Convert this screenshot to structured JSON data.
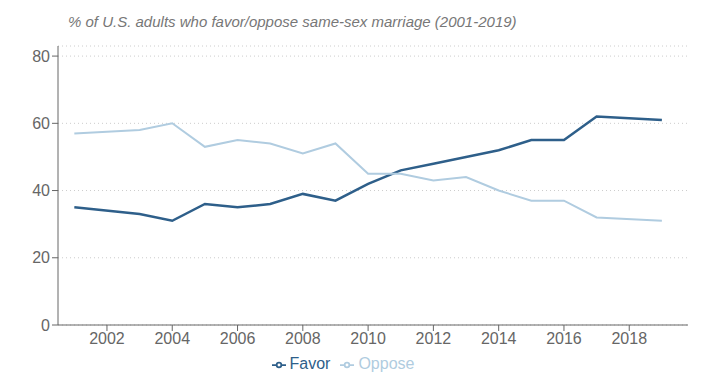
{
  "chart_data": {
    "type": "line",
    "title": "% of U.S. adults who favor/oppose same-sex marriage (2001-2019)",
    "x": [
      2001,
      2003,
      2004,
      2005,
      2006,
      2007,
      2008,
      2009,
      2010,
      2011,
      2012,
      2013,
      2014,
      2015,
      2016,
      2017,
      2019
    ],
    "series": [
      {
        "name": "Favor",
        "color": "#2e5f8a",
        "values": [
          35,
          33,
          31,
          36,
          35,
          36,
          39,
          37,
          42,
          46,
          48,
          50,
          52,
          55,
          55,
          62,
          61
        ]
      },
      {
        "name": "Oppose",
        "color": "#b0cce0",
        "values": [
          57,
          58,
          60,
          53,
          55,
          54,
          51,
          54,
          45,
          45,
          43,
          44,
          40,
          37,
          37,
          32,
          31
        ]
      }
    ],
    "xlim": [
      2000.5,
      2019.8
    ],
    "xticks": [
      2002,
      2004,
      2006,
      2008,
      2010,
      2012,
      2014,
      2016,
      2018
    ],
    "ylim": [
      0,
      83
    ],
    "yticks": [
      0,
      20,
      40,
      60,
      80
    ],
    "grid": true,
    "legend": "bottom"
  }
}
